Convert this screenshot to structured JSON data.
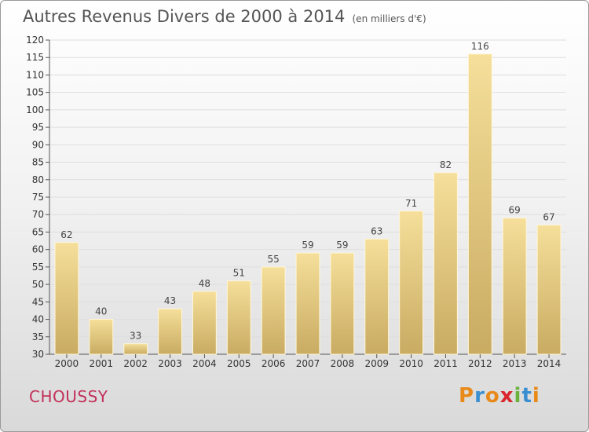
{
  "header": {
    "title": "Autres Revenus Divers de 2000 à 2014",
    "subtitle": "(en milliers d'€)"
  },
  "footer": {
    "commune": "CHOUSSY",
    "brand": "Proxiti"
  },
  "colors": {
    "commune": "#c2305a",
    "bar_light": "#f5df9a",
    "bar_dark": "#c9ab62",
    "brand_letters": [
      "#e88a1a",
      "#3a8fd0",
      "#e88a1a",
      "#d8272d",
      "#6ab23e",
      "#3a8fd0",
      "#e88a1a"
    ]
  },
  "chart_data": {
    "type": "bar",
    "categories": [
      "2000",
      "2001",
      "2002",
      "2003",
      "2004",
      "2005",
      "2006",
      "2007",
      "2008",
      "2009",
      "2010",
      "2011",
      "2012",
      "2013",
      "2014"
    ],
    "values": [
      62,
      40,
      33,
      43,
      48,
      51,
      55,
      59,
      59,
      63,
      71,
      82,
      116,
      69,
      67
    ],
    "data_labels": [
      "62",
      "40",
      "33",
      "43",
      "48",
      "51",
      "55",
      "59",
      "59",
      "63",
      "71",
      "82",
      "116",
      "69",
      "67"
    ],
    "title": "Autres Revenus Divers de 2000 à 2014",
    "xlabel": "",
    "ylabel": "",
    "ylim": [
      30,
      120
    ],
    "yticks": [
      30,
      35,
      40,
      45,
      50,
      55,
      60,
      65,
      70,
      75,
      80,
      85,
      90,
      95,
      100,
      105,
      110,
      115,
      120
    ],
    "ytick_labels": [
      "30",
      "35",
      "40",
      "45",
      "50",
      "55",
      "60",
      "65",
      "70",
      "75",
      "80",
      "85",
      "90",
      "95",
      "100",
      "105",
      "110",
      "115",
      "120"
    ],
    "grid": true,
    "legend": "none"
  }
}
